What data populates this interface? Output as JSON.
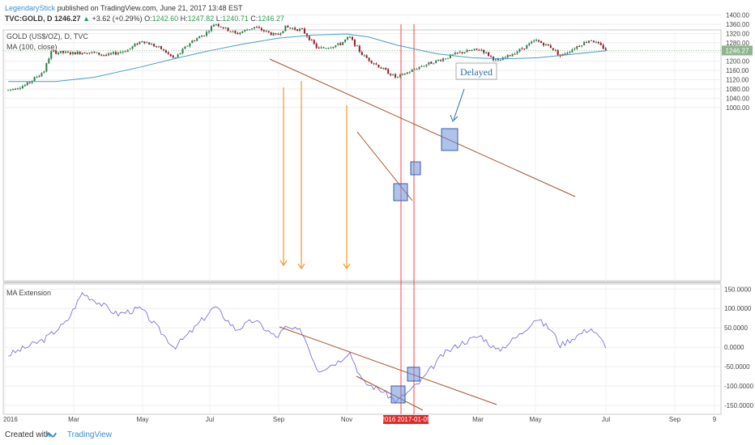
{
  "header": {
    "author": "LegendaryStick",
    "published": "published on TradingView.com, June 21, 2017 13:48 EST",
    "symbol_line": "TVC:GOLD, D",
    "last": "1246.27",
    "change": "+3.62 (+0.29%)",
    "open_label": "O:",
    "open": "1242.60",
    "high_label": "H:",
    "high": "1247.82",
    "low_label": "L:",
    "low": "1240.71",
    "close_label": "C:",
    "close": "1246.27"
  },
  "main_pane": {
    "title": "GOLD (US$/OZ), D, TVC",
    "indicator": "MA (100, close)",
    "annotation": "Delayed",
    "price_badge": "1246.27"
  },
  "lower_pane": {
    "title": "MA Extension"
  },
  "footer": {
    "created_with": "Created with",
    "brand": "TradingView"
  },
  "colors": {
    "up_candle": "#2e7d4a",
    "down_candle": "#8b1e2a",
    "ma_line": "#4a9cc4",
    "ext_line": "#6b63d6",
    "trendline": "#a0522d",
    "arrow": "#f0a030",
    "vline": "#ff4040",
    "box_fill": "#6b8fd9",
    "price_badge": "#8fb48f"
  },
  "chart_data": [
    {
      "type": "candlestick",
      "title": "GOLD (US$/OZ), D, TVC",
      "ylim": [
        975,
        1410
      ],
      "y_ticks": [
        "1400.00",
        "1360.00",
        "1320.00",
        "1280.00",
        "1240.00",
        "1200.00",
        "1160.00",
        "1120.00",
        "1080.00",
        "1040.00",
        "1000.00"
      ],
      "x_ticks": [
        "2016",
        "Mar",
        "May",
        "Jul",
        "Sep",
        "Nov",
        "2016 2017-01-05",
        "Mar",
        "May",
        "Jul",
        "Sep",
        "9"
      ],
      "close_path": [
        [
          "2016-01-04",
          1075
        ],
        [
          "2016-01-20",
          1098
        ],
        [
          "2016-02-05",
          1158
        ],
        [
          "2016-02-11",
          1240
        ],
        [
          "2016-03-01",
          1235
        ],
        [
          "2016-03-15",
          1240
        ],
        [
          "2016-04-01",
          1225
        ],
        [
          "2016-04-20",
          1250
        ],
        [
          "2016-05-02",
          1290
        ],
        [
          "2016-05-20",
          1252
        ],
        [
          "2016-05-31",
          1210
        ],
        [
          "2016-06-15",
          1285
        ],
        [
          "2016-06-28",
          1320
        ],
        [
          "2016-07-06",
          1365
        ],
        [
          "2016-07-25",
          1318
        ],
        [
          "2016-08-10",
          1348
        ],
        [
          "2016-08-30",
          1310
        ],
        [
          "2016-09-07",
          1347
        ],
        [
          "2016-09-22",
          1335
        ],
        [
          "2016-10-06",
          1253
        ],
        [
          "2016-10-25",
          1272
        ],
        [
          "2016-11-03",
          1305
        ],
        [
          "2016-11-15",
          1225
        ],
        [
          "2016-12-01",
          1172
        ],
        [
          "2016-12-15",
          1128
        ],
        [
          "2017-01-05",
          1177
        ],
        [
          "2017-01-25",
          1210
        ],
        [
          "2017-02-10",
          1238
        ],
        [
          "2017-02-28",
          1252
        ],
        [
          "2017-03-15",
          1198
        ],
        [
          "2017-04-05",
          1252
        ],
        [
          "2017-04-18",
          1290
        ],
        [
          "2017-05-02",
          1260
        ],
        [
          "2017-05-10",
          1222
        ],
        [
          "2017-05-25",
          1265
        ],
        [
          "2017-06-06",
          1295
        ],
        [
          "2017-06-21",
          1246
        ]
      ],
      "ma100_path": [
        [
          "2016-01-04",
          1112
        ],
        [
          "2016-02-15",
          1112
        ],
        [
          "2016-03-20",
          1130
        ],
        [
          "2016-05-01",
          1175
        ],
        [
          "2016-06-01",
          1212
        ],
        [
          "2016-07-01",
          1245
        ],
        [
          "2016-08-01",
          1275
        ],
        [
          "2016-09-01",
          1300
        ],
        [
          "2016-10-01",
          1313
        ],
        [
          "2016-11-01",
          1318
        ],
        [
          "2016-11-20",
          1305
        ],
        [
          "2016-12-15",
          1270
        ],
        [
          "2017-01-20",
          1232
        ],
        [
          "2017-02-20",
          1215
        ],
        [
          "2017-03-20",
          1210
        ],
        [
          "2017-04-20",
          1215
        ],
        [
          "2017-05-20",
          1230
        ],
        [
          "2017-06-21",
          1246
        ]
      ],
      "annotations": [
        "Delayed"
      ]
    },
    {
      "type": "line",
      "title": "MA Extension",
      "ylim": [
        -175,
        160
      ],
      "y_ticks": [
        "150.0000",
        "100.0000",
        "50.0000",
        "0.0000",
        "-50.0000",
        "-100.0000",
        "-150.0000"
      ],
      "series": [
        {
          "name": "MA Extension",
          "points": [
            [
              "2016-01-04",
              -20
            ],
            [
              "2016-02-05",
              20
            ],
            [
              "2016-02-25",
              65
            ],
            [
              "2016-03-10",
              140
            ],
            [
              "2016-03-25",
              115
            ],
            [
              "2016-04-10",
              85
            ],
            [
              "2016-05-01",
              100
            ],
            [
              "2016-05-31",
              0
            ],
            [
              "2016-06-15",
              40
            ],
            [
              "2016-07-06",
              105
            ],
            [
              "2016-07-25",
              45
            ],
            [
              "2016-08-10",
              70
            ],
            [
              "2016-08-30",
              25
            ],
            [
              "2016-09-07",
              50
            ],
            [
              "2016-09-22",
              40
            ],
            [
              "2016-10-06",
              -60
            ],
            [
              "2016-10-25",
              -35
            ],
            [
              "2016-11-03",
              -10
            ],
            [
              "2016-11-15",
              -90
            ],
            [
              "2016-12-01",
              -110
            ],
            [
              "2016-12-15",
              -140
            ],
            [
              "2017-01-05",
              -90
            ],
            [
              "2017-01-25",
              -20
            ],
            [
              "2017-02-10",
              10
            ],
            [
              "2017-02-28",
              30
            ],
            [
              "2017-03-15",
              -10
            ],
            [
              "2017-04-05",
              35
            ],
            [
              "2017-04-18",
              75
            ],
            [
              "2017-05-02",
              45
            ],
            [
              "2017-05-10",
              5
            ],
            [
              "2017-05-25",
              30
            ],
            [
              "2017-06-06",
              50
            ],
            [
              "2017-06-21",
              0
            ]
          ]
        }
      ]
    }
  ]
}
